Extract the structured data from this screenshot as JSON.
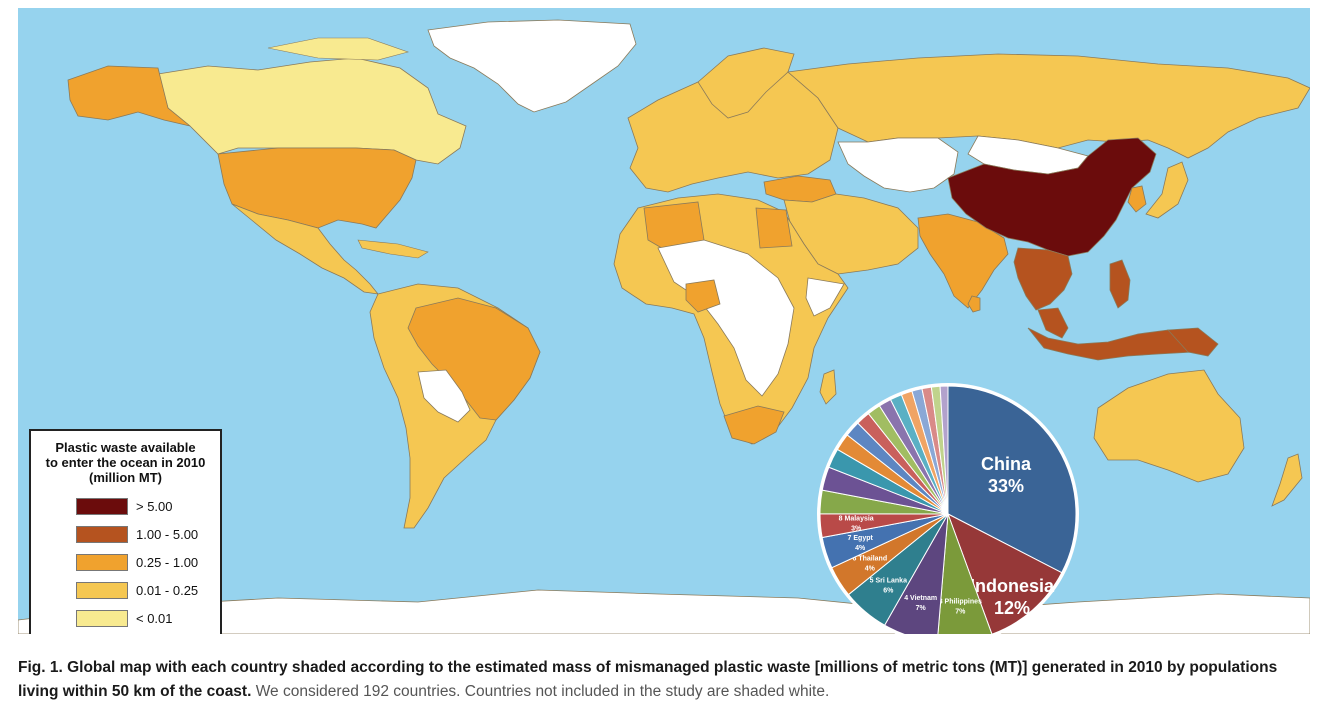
{
  "legend": {
    "title_lines": [
      "Plastic waste available",
      "to enter the ocean in 2010",
      "(million MT)"
    ],
    "items": [
      {
        "label": "> 5.00",
        "color": "#6b0c0c"
      },
      {
        "label": "1.00 - 5.00",
        "color": "#b5531f"
      },
      {
        "label": "0.25 - 1.00",
        "color": "#f0a22e"
      },
      {
        "label": "0.01 - 0.25",
        "color": "#f5c752"
      },
      {
        "label": "< 0.01",
        "color": "#f8ea90"
      }
    ]
  },
  "colors": {
    "ocean": "#96d3ee",
    "not_included": "#ffffff",
    "border": "#8a7a5a"
  },
  "map": {
    "countries": [
      {
        "name": "China",
        "class": "> 5.00"
      },
      {
        "name": "Indonesia",
        "class": "1.00 - 5.00"
      },
      {
        "name": "Philippines",
        "class": "1.00 - 5.00"
      },
      {
        "name": "Vietnam",
        "class": "1.00 - 5.00"
      },
      {
        "name": "Thailand",
        "class": "1.00 - 5.00"
      },
      {
        "name": "Malaysia",
        "class": "1.00 - 5.00"
      },
      {
        "name": "Sri Lanka",
        "class": "0.25 - 1.00"
      },
      {
        "name": "Egypt",
        "class": "0.25 - 1.00"
      },
      {
        "name": "India",
        "class": "0.25 - 1.00"
      },
      {
        "name": "United States",
        "class": "0.25 - 1.00"
      },
      {
        "name": "Brazil",
        "class": "0.25 - 1.00"
      },
      {
        "name": "Turkey",
        "class": "0.25 - 1.00"
      },
      {
        "name": "Nigeria",
        "class": "0.25 - 1.00"
      },
      {
        "name": "South Africa",
        "class": "0.25 - 1.00"
      },
      {
        "name": "Algeria",
        "class": "0.25 - 1.00"
      },
      {
        "name": "Russia",
        "class": "0.01 - 0.25"
      },
      {
        "name": "Australia",
        "class": "0.01 - 0.25"
      },
      {
        "name": "Mexico",
        "class": "0.01 - 0.25"
      },
      {
        "name": "Canada",
        "class": "< 0.01"
      },
      {
        "name": "Greenland",
        "class": "not included"
      },
      {
        "name": "Mongolia",
        "class": "not included"
      },
      {
        "name": "Kazakhstan",
        "class": "not included"
      },
      {
        "name": "Antarctica",
        "class": "not included"
      }
    ]
  },
  "chart_data": {
    "type": "pie",
    "slices": [
      {
        "rank": "",
        "name": "China",
        "value": 33,
        "label": "China",
        "pct_label": "33%",
        "color": "#3a6496"
      },
      {
        "rank": "",
        "name": "Indonesia",
        "value": 12,
        "label": "Indonesia",
        "pct_label": "12%",
        "color": "#963838"
      },
      {
        "rank": "3",
        "name": "Philippines",
        "value": 7,
        "label": "3 Philippines",
        "pct_label": "7%",
        "color": "#7b9a3a"
      },
      {
        "rank": "4",
        "name": "Vietnam",
        "value": 7,
        "label": "4 Vietnam",
        "pct_label": "7%",
        "color": "#5d467f"
      },
      {
        "rank": "5",
        "name": "Sri Lanka",
        "value": 6,
        "label": "5 Sri Lanka",
        "pct_label": "6%",
        "color": "#2f7f8e"
      },
      {
        "rank": "6",
        "name": "Thailand",
        "value": 4,
        "label": "6 Thailand",
        "pct_label": "4%",
        "color": "#d2772b"
      },
      {
        "rank": "7",
        "name": "Egypt",
        "value": 4,
        "label": "7 Egypt",
        "pct_label": "4%",
        "color": "#4472b0"
      },
      {
        "rank": "8",
        "name": "Malaysia",
        "value": 3,
        "label": "8 Malaysia",
        "pct_label": "3%",
        "color": "#b94a48"
      },
      {
        "rank": "",
        "name": "",
        "value": 3,
        "label": "",
        "pct_label": "",
        "color": "#86a84a"
      },
      {
        "rank": "",
        "name": "",
        "value": 3,
        "label": "",
        "pct_label": "",
        "color": "#6c5294"
      },
      {
        "rank": "",
        "name": "",
        "value": 2.5,
        "label": "",
        "pct_label": "",
        "color": "#3a97ad"
      },
      {
        "rank": "",
        "name": "",
        "value": 2.2,
        "label": "",
        "pct_label": "",
        "color": "#e38a36"
      },
      {
        "rank": "",
        "name": "",
        "value": 2,
        "label": "",
        "pct_label": "",
        "color": "#5d86c2"
      },
      {
        "rank": "",
        "name": "",
        "value": 1.8,
        "label": "",
        "pct_label": "",
        "color": "#c9605c"
      },
      {
        "rank": "",
        "name": "",
        "value": 1.7,
        "label": "",
        "pct_label": "",
        "color": "#a1bd62"
      },
      {
        "rank": "",
        "name": "",
        "value": 1.6,
        "label": "",
        "pct_label": "",
        "color": "#8a74ad"
      },
      {
        "rank": "",
        "name": "",
        "value": 1.5,
        "label": "",
        "pct_label": "",
        "color": "#5ab0c4"
      },
      {
        "rank": "",
        "name": "",
        "value": 1.4,
        "label": "",
        "pct_label": "",
        "color": "#f0a464"
      },
      {
        "rank": "",
        "name": "",
        "value": 1.3,
        "label": "",
        "pct_label": "",
        "color": "#8aa8d6"
      },
      {
        "rank": "",
        "name": "",
        "value": 1.2,
        "label": "",
        "pct_label": "",
        "color": "#d98a88"
      },
      {
        "rank": "",
        "name": "",
        "value": 1.1,
        "label": "",
        "pct_label": "",
        "color": "#c0d38c"
      },
      {
        "rank": "",
        "name": "",
        "value": 1,
        "label": "",
        "pct_label": "",
        "color": "#b2a2cc"
      }
    ]
  },
  "caption": {
    "bold": "Fig. 1. Global map with each country shaded according to the estimated mass of mismanaged plastic waste [millions of metric tons (MT)] generated in 2010 by populations living within 50 km of the coast.",
    "normal": " We considered 192 countries. Countries not included in the study are shaded white."
  }
}
